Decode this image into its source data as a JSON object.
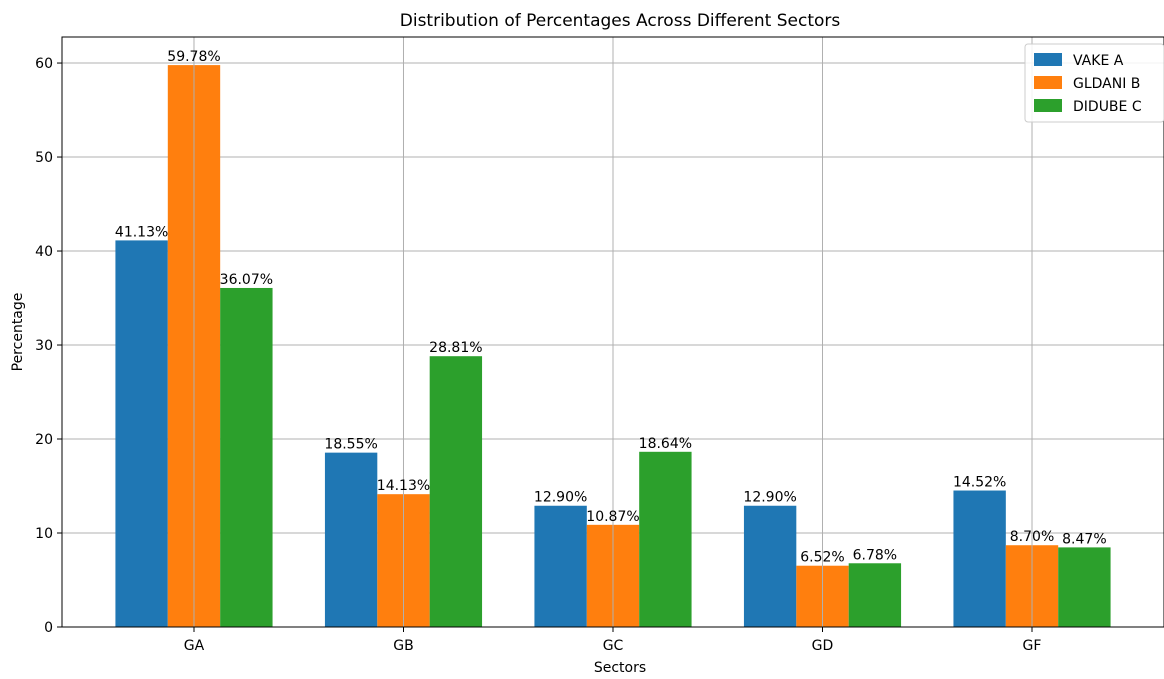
{
  "chart_data": {
    "type": "bar",
    "title": "Distribution of Percentages Across Different Sectors",
    "xlabel": "Sectors",
    "ylabel": "Percentage",
    "categories": [
      "GA",
      "GB",
      "GC",
      "GD",
      "GF"
    ],
    "ylim": [
      0,
      62.77
    ],
    "yticks": [
      0,
      10,
      20,
      30,
      40,
      50,
      60
    ],
    "grid": true,
    "legend_position": "top-right",
    "series": [
      {
        "name": "VAKE A",
        "color": "#1f77b4",
        "values": [
          41.13,
          18.55,
          12.9,
          12.9,
          14.52
        ],
        "labels": [
          "41.13%",
          "18.55%",
          "12.90%",
          "12.90%",
          "14.52%"
        ]
      },
      {
        "name": "GLDANI B",
        "color": "#ff7f0e",
        "values": [
          59.78,
          14.13,
          10.87,
          6.52,
          8.7
        ],
        "labels": [
          "59.78%",
          "14.13%",
          "10.87%",
          "6.52%",
          "8.70%"
        ]
      },
      {
        "name": "DIDUBE C",
        "color": "#2ca02c",
        "values": [
          36.07,
          28.81,
          18.64,
          6.78,
          8.47
        ],
        "labels": [
          "36.07%",
          "28.81%",
          "18.64%",
          "6.78%",
          "8.47%"
        ]
      }
    ]
  }
}
